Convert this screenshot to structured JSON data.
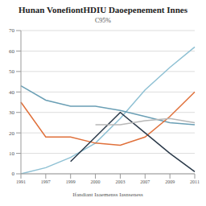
{
  "chart_data": {
    "type": "line",
    "title": "Hunan VonefiontHDIU Daoepenement Innes",
    "subtitle": "C95%",
    "x_label": "Ifandiant Iaaemenss Iasnseness",
    "categories": [
      "1991",
      "1997",
      "1999",
      "2000",
      "2003",
      "2007",
      "2009",
      "2011"
    ],
    "series": [
      {
        "color": "#8fc1d4",
        "values": [
          0,
          3,
          8,
          15,
          27,
          41,
          52,
          62
        ]
      },
      {
        "color": "#6a9fb5",
        "values": [
          43,
          36,
          33,
          33,
          31,
          28,
          25,
          24
        ]
      },
      {
        "color": "#e0703a",
        "values": [
          35,
          18,
          18,
          15,
          14,
          18,
          28,
          40
        ]
      },
      {
        "color": "#2b3a4a",
        "values": [
          null,
          null,
          6,
          18,
          30,
          20,
          10,
          1
        ]
      },
      {
        "color": "#b8b8b8",
        "values": [
          null,
          null,
          null,
          24,
          24,
          26,
          27,
          25
        ]
      }
    ],
    "ylim": [
      0,
      70
    ],
    "yticks": [
      0,
      10,
      20,
      30,
      40,
      50,
      60,
      70
    ],
    "grid": true
  }
}
